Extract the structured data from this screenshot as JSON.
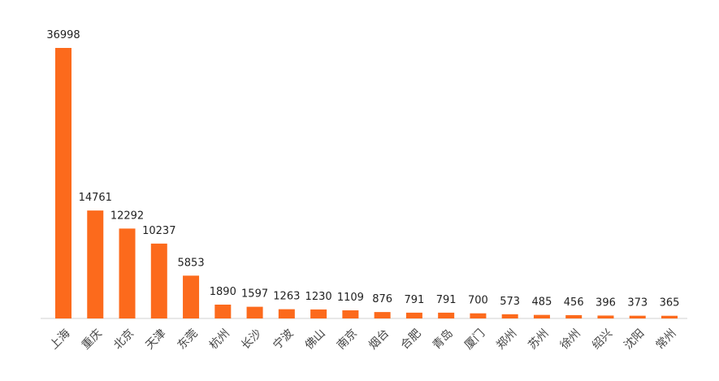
{
  "chart_data": {
    "type": "bar",
    "categories": [
      "上海",
      "重庆",
      "北京",
      "天津",
      "东莞",
      "杭州",
      "长沙",
      "宁波",
      "佛山",
      "南京",
      "烟台",
      "合肥",
      "青岛",
      "厦门",
      "郑州",
      "苏州",
      "徐州",
      "绍兴",
      "沈阳",
      "常州"
    ],
    "values": [
      36998,
      14761,
      12292,
      10237,
      5853,
      1890,
      1597,
      1263,
      1230,
      1109,
      876,
      791,
      791,
      700,
      573,
      485,
      456,
      396,
      373,
      365
    ],
    "color": "#fc6a1c"
  }
}
